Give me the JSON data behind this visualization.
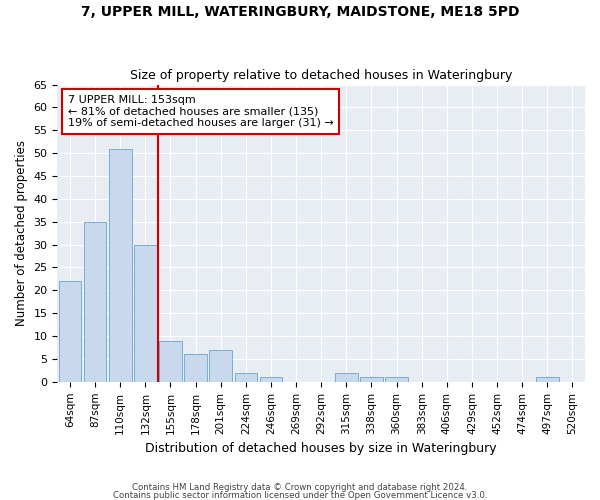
{
  "title1": "7, UPPER MILL, WATERINGBURY, MAIDSTONE, ME18 5PD",
  "title2": "Size of property relative to detached houses in Wateringbury",
  "xlabel": "Distribution of detached houses by size in Wateringbury",
  "ylabel": "Number of detached properties",
  "categories": [
    "64sqm",
    "87sqm",
    "110sqm",
    "132sqm",
    "155sqm",
    "178sqm",
    "201sqm",
    "224sqm",
    "246sqm",
    "269sqm",
    "292sqm",
    "315sqm",
    "338sqm",
    "360sqm",
    "383sqm",
    "406sqm",
    "429sqm",
    "452sqm",
    "474sqm",
    "497sqm",
    "520sqm"
  ],
  "values": [
    22,
    35,
    51,
    30,
    9,
    6,
    7,
    2,
    1,
    0,
    0,
    2,
    1,
    1,
    0,
    0,
    0,
    0,
    0,
    1,
    0
  ],
  "bar_color": "#c8d9ee",
  "bar_edge_color": "#7aadd4",
  "vline_x": 3.5,
  "vline_color": "#cc0000",
  "annotation_line1": "7 UPPER MILL: 153sqm",
  "annotation_line2": "← 81% of detached houses are smaller (135)",
  "annotation_line3": "19% of semi-detached houses are larger (31) →",
  "annotation_box_facecolor": "#ffffff",
  "annotation_box_edgecolor": "#cc0000",
  "ylim": [
    0,
    65
  ],
  "yticks": [
    0,
    5,
    10,
    15,
    20,
    25,
    30,
    35,
    40,
    45,
    50,
    55,
    60,
    65
  ],
  "fig_facecolor": "#ffffff",
  "ax_facecolor": "#e8edf4",
  "grid_color": "#ffffff",
  "footer1": "Contains HM Land Registry data © Crown copyright and database right 2024.",
  "footer2": "Contains public sector information licensed under the Open Government Licence v3.0."
}
